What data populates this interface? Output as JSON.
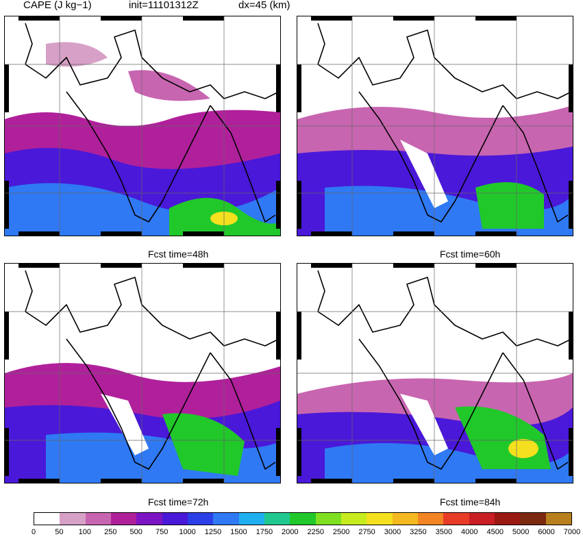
{
  "header": {
    "field": "CAPE (J kg−1)",
    "init": "init=11101312Z",
    "dx": "dx=45 (km)"
  },
  "panels": [
    {
      "caption": ""
    },
    {
      "caption": "Fcst time=48h"
    },
    {
      "caption": "Fcst time=60h"
    },
    {
      "caption": "Fcst time=72h"
    },
    {
      "caption": "Fcst time=84h"
    }
  ],
  "colorbar": {
    "ticks": [
      "0",
      "50",
      "100",
      "250",
      "500",
      "750",
      "1000",
      "1250",
      "1500",
      "1750",
      "2000",
      "2250",
      "2500",
      "2750",
      "3000",
      "3250",
      "3500",
      "4000",
      "4500",
      "5000",
      "6000",
      "7000"
    ],
    "colors": [
      "#ffffff",
      "#d7a0c6",
      "#c865b0",
      "#b0209b",
      "#7d14c4",
      "#4a18d8",
      "#2a3fe8",
      "#2f79f4",
      "#20b0f0",
      "#20c890",
      "#20c82a",
      "#7ee020",
      "#c6ec20",
      "#f4e01e",
      "#f4b820",
      "#f28424",
      "#e83c28",
      "#c81e24",
      "#9a1812",
      "#7a280e",
      "#b8801c"
    ]
  }
}
